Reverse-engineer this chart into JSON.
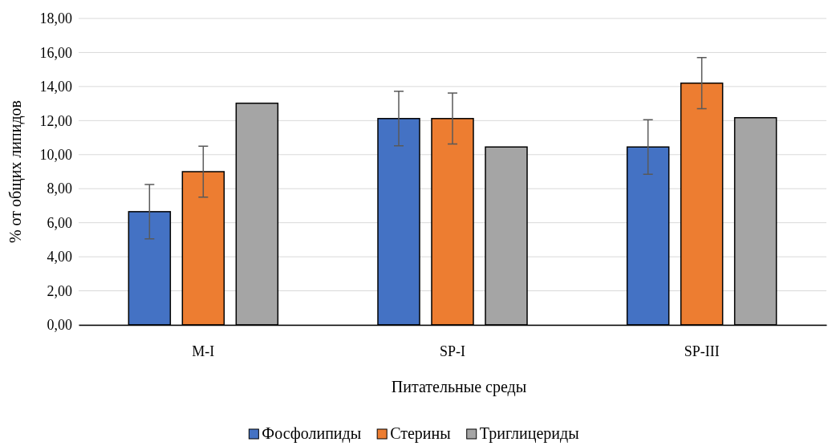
{
  "chart_data": {
    "type": "bar",
    "xlabel": "Питательные среды",
    "ylabel": "% от общих липидов",
    "categories": [
      "M-I",
      "SP-I",
      "SP-III"
    ],
    "series": [
      {
        "name": "Фосфолипиды",
        "color": "#4472c4",
        "values": [
          6.65,
          12.12,
          10.45
        ],
        "errors": [
          1.6,
          1.6,
          1.6
        ]
      },
      {
        "name": "Стерины",
        "color": "#ed7d31",
        "values": [
          9.0,
          12.12,
          14.2
        ],
        "errors": [
          1.5,
          1.5,
          1.5
        ]
      },
      {
        "name": "Триглицериды",
        "color": "#a5a5a5",
        "values": [
          13.02,
          10.45,
          12.17
        ]
      }
    ],
    "ylim": [
      0,
      18
    ],
    "yticks": [
      {
        "value": 0,
        "label": "0,00"
      },
      {
        "value": 2,
        "label": "2,00"
      },
      {
        "value": 4,
        "label": "4,00"
      },
      {
        "value": 6,
        "label": "6,00"
      },
      {
        "value": 8,
        "label": "8,00"
      },
      {
        "value": 10,
        "label": "10,00"
      },
      {
        "value": 12,
        "label": "12,00"
      },
      {
        "value": 14,
        "label": "14,00"
      },
      {
        "value": 16,
        "label": "16,00"
      },
      {
        "value": 18,
        "label": "18,00"
      }
    ],
    "grid": "y",
    "legend": "bottom"
  }
}
